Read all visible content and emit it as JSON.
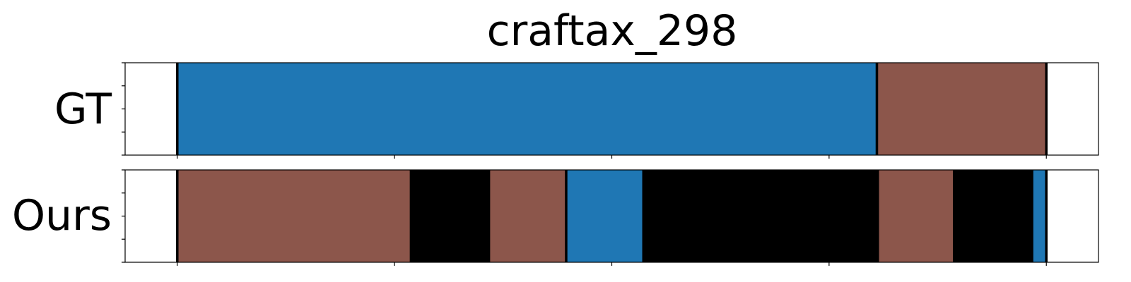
{
  "chart_data": {
    "type": "segmentation_timeline",
    "title": "craftax_298",
    "x_range": [
      -0.12,
      2.12
    ],
    "x_ticks": [
      0,
      0.5,
      1.0,
      1.5,
      2.0
    ],
    "palette": {
      "blue": "#1f77b4",
      "brown": "#8c564b",
      "black": "#000000"
    },
    "rows": [
      {
        "label": "GT",
        "segments": [
          {
            "start": 0.0,
            "end": 1.61,
            "color": "#1f77b4"
          },
          {
            "start": 1.61,
            "end": 2.0,
            "color": "#8c564b"
          }
        ],
        "boundaries": [
          0.0,
          1.61,
          2.0
        ]
      },
      {
        "label": "Ours",
        "segments": [
          {
            "start": 0.0,
            "end": 0.535,
            "color": "#8c564b"
          },
          {
            "start": 0.535,
            "end": 0.72,
            "color": "#000000"
          },
          {
            "start": 0.72,
            "end": 0.895,
            "color": "#8c564b"
          },
          {
            "start": 0.895,
            "end": 1.07,
            "color": "#1f77b4"
          },
          {
            "start": 1.07,
            "end": 1.615,
            "color": "#000000"
          },
          {
            "start": 1.615,
            "end": 1.785,
            "color": "#8c564b"
          },
          {
            "start": 1.785,
            "end": 1.97,
            "color": "#000000"
          },
          {
            "start": 1.97,
            "end": 2.0,
            "color": "#1f77b4"
          }
        ],
        "boundaries": [
          0.0,
          0.895,
          2.0
        ]
      }
    ]
  }
}
